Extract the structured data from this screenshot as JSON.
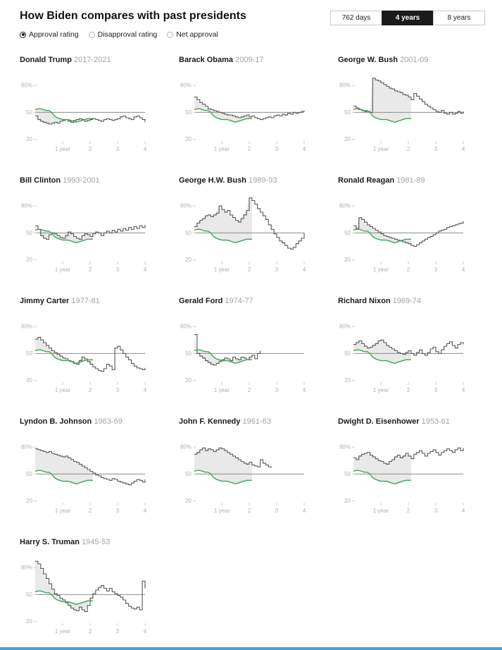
{
  "header": {
    "title": "How Biden compares with past presidents",
    "range_buttons": [
      {
        "label": "762 days",
        "selected": false
      },
      {
        "label": "4 years",
        "selected": true
      },
      {
        "label": "8 years",
        "selected": false
      }
    ],
    "metric_options": [
      {
        "label": "Approval rating",
        "selected": true
      },
      {
        "label": "Disapproval rating",
        "selected": false
      },
      {
        "label": "Net approval",
        "selected": false
      }
    ]
  },
  "chart_data": {
    "type": "line",
    "x_unit": "years in office",
    "y_unit": "% approval",
    "xmax": 4,
    "ylim": [
      15,
      95
    ],
    "yticks": [
      {
        "v": 80,
        "label": "80%"
      },
      {
        "v": 50,
        "label": "50"
      },
      {
        "v": 20,
        "label": "20"
      }
    ],
    "xticks": [
      {
        "v": 1,
        "label": "1 year"
      },
      {
        "v": 2,
        "label": "2"
      },
      {
        "v": 3,
        "label": "3"
      },
      {
        "v": 4,
        "label": "4"
      }
    ],
    "colors": {
      "biden_line": "#3fa45b",
      "president_line": "#565656",
      "band_fill": "#e4e4e4",
      "midline": "#8c8c8c"
    },
    "biden": {
      "name": "Joe Biden",
      "start": 0,
      "step": 0.1,
      "values": [
        53,
        54,
        54,
        53,
        52,
        52,
        50,
        46,
        44,
        43,
        42,
        42,
        42,
        41,
        40,
        39,
        40,
        41,
        42,
        43,
        43,
        43
      ]
    },
    "presidents": [
      {
        "name": "Donald Trump",
        "years": "2017-2021",
        "start": 0,
        "step": 0.1,
        "values": [
          46,
          42,
          40,
          39,
          38,
          37,
          38,
          39,
          38,
          40,
          41,
          42,
          40,
          39,
          41,
          42,
          43,
          42,
          40,
          41,
          42,
          43,
          42,
          41,
          40,
          42,
          43,
          42,
          41,
          42,
          43,
          45,
          46,
          44,
          43,
          42,
          45,
          46,
          44,
          42,
          39
        ]
      },
      {
        "name": "Barack Obama",
        "years": "2009-17",
        "start": 0,
        "step": 0.1,
        "values": [
          67,
          64,
          61,
          59,
          57,
          54,
          53,
          52,
          51,
          50,
          49,
          48,
          47,
          47,
          46,
          45,
          44,
          45,
          46,
          47,
          45,
          46,
          44,
          43,
          42,
          43,
          44,
          45,
          44,
          46,
          47,
          46,
          48,
          47,
          49,
          48,
          50,
          49,
          50,
          51,
          52
        ]
      },
      {
        "name": "George W. Bush",
        "years": "2001-09",
        "start": 0,
        "step": 0.1,
        "values": [
          57,
          55,
          53,
          52,
          51,
          51,
          50,
          88,
          86,
          85,
          83,
          81,
          79,
          77,
          76,
          74,
          73,
          72,
          70,
          69,
          67,
          64,
          71,
          68,
          65,
          62,
          59,
          57,
          55,
          53,
          51,
          50,
          52,
          49,
          48,
          50,
          48,
          49,
          51,
          49,
          51
        ]
      },
      {
        "name": "Bill Clinton",
        "years": "1993-2001",
        "start": 0,
        "step": 0.1,
        "values": [
          58,
          54,
          47,
          44,
          43,
          48,
          50,
          49,
          47,
          45,
          44,
          47,
          51,
          49,
          46,
          44,
          43,
          47,
          49,
          48,
          46,
          49,
          51,
          50,
          47,
          50,
          52,
          50,
          53,
          51,
          54,
          52,
          55,
          53,
          56,
          54,
          57,
          55,
          58,
          56,
          59
        ]
      },
      {
        "name": "George H.W. Bush",
        "years": "1989-93",
        "start": 0,
        "step": 0.1,
        "values": [
          57,
          61,
          64,
          66,
          69,
          70,
          68,
          70,
          72,
          80,
          76,
          73,
          75,
          70,
          67,
          64,
          62,
          66,
          70,
          75,
          89,
          86,
          82,
          77,
          73,
          69,
          65,
          59,
          54,
          49,
          45,
          41,
          39,
          36,
          33,
          32,
          34,
          38,
          41,
          44,
          50
        ]
      },
      {
        "name": "Ronald Reagan",
        "years": "1981-89",
        "start": 0,
        "step": 0.1,
        "values": [
          58,
          55,
          67,
          65,
          62,
          59,
          57,
          55,
          53,
          51,
          49,
          47,
          46,
          45,
          44,
          43,
          42,
          41,
          40,
          39,
          38,
          36,
          35,
          37,
          39,
          41,
          43,
          45,
          46,
          48,
          50,
          52,
          53,
          54,
          56,
          57,
          58,
          59,
          60,
          61,
          63
        ]
      },
      {
        "name": "Jimmy Carter",
        "years": "1977-81",
        "start": 0,
        "step": 0.1,
        "values": [
          66,
          68,
          65,
          62,
          59,
          56,
          53,
          51,
          49,
          47,
          45,
          44,
          42,
          41,
          39,
          38,
          42,
          46,
          44,
          41,
          38,
          35,
          33,
          31,
          30,
          33,
          38,
          36,
          32,
          56,
          58,
          54,
          50,
          46,
          43,
          39,
          36,
          34,
          33,
          32,
          34
        ]
      },
      {
        "name": "Gerald Ford",
        "years": "1974-77",
        "start": 0,
        "step": 0.1,
        "values": [
          71,
          50,
          47,
          45,
          42,
          40,
          38,
          37,
          39,
          41,
          43,
          45,
          44,
          42,
          46,
          44,
          43,
          46,
          45,
          43,
          46,
          48,
          44,
          50,
          53
        ]
      },
      {
        "name": "Richard Nixon",
        "years": "1969-74",
        "start": 0,
        "step": 0.1,
        "values": [
          60,
          62,
          64,
          61,
          58,
          56,
          57,
          59,
          61,
          64,
          65,
          62,
          59,
          57,
          55,
          53,
          51,
          50,
          49,
          51,
          53,
          50,
          48,
          51,
          54,
          50,
          48,
          51,
          55,
          57,
          52,
          50,
          54,
          58,
          61,
          63,
          59,
          56,
          60,
          62,
          60
        ]
      },
      {
        "name": "Lyndon B. Johnson",
        "years": "1963-69",
        "start": 0,
        "step": 0.1,
        "values": [
          78,
          77,
          76,
          75,
          74,
          75,
          73,
          72,
          71,
          70,
          69,
          70,
          68,
          66,
          64,
          63,
          61,
          59,
          57,
          55,
          53,
          51,
          49,
          48,
          46,
          45,
          44,
          43,
          45,
          44,
          42,
          41,
          40,
          39,
          38,
          40,
          42,
          44,
          43,
          41,
          44
        ]
      },
      {
        "name": "John F. Kennedy",
        "years": "1961-63",
        "start": 0,
        "step": 0.1,
        "values": [
          72,
          74,
          77,
          79,
          76,
          78,
          77,
          75,
          77,
          79,
          78,
          76,
          74,
          72,
          70,
          68,
          66,
          64,
          62,
          61,
          63,
          60,
          59,
          58,
          66,
          62,
          60,
          58,
          57
        ]
      },
      {
        "name": "Dwight D. Eisenhower",
        "years": "1953-61",
        "start": 0,
        "step": 0.1,
        "values": [
          68,
          66,
          70,
          72,
          73,
          74,
          71,
          69,
          67,
          65,
          64,
          62,
          61,
          64,
          66,
          69,
          71,
          68,
          70,
          73,
          70,
          67,
          72,
          74,
          76,
          73,
          70,
          73,
          75,
          77,
          74,
          71,
          74,
          76,
          78,
          76,
          74,
          77,
          79,
          76,
          79
        ]
      },
      {
        "name": "Harry S. Truman",
        "years": "1945-53",
        "start": 0,
        "step": 0.1,
        "values": [
          87,
          84,
          79,
          73,
          68,
          62,
          56,
          51,
          49,
          46,
          44,
          41,
          38,
          35,
          33,
          32,
          36,
          33,
          31,
          38,
          46,
          51,
          55,
          58,
          60,
          57,
          54,
          57,
          53,
          51,
          49,
          47,
          44,
          40,
          37,
          35,
          34,
          36,
          33,
          65,
          57
        ]
      }
    ]
  }
}
